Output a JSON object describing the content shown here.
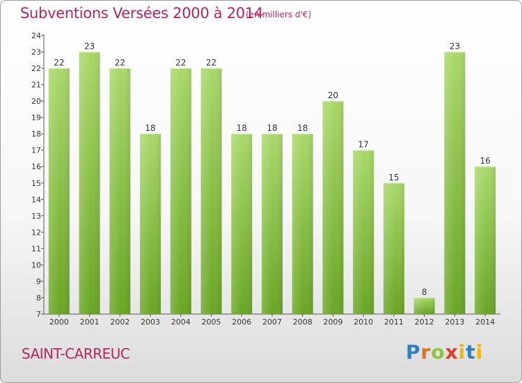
{
  "header": {
    "title": "Subventions Versées 2000 à 2014",
    "subtitle": "(en milliers d'€)"
  },
  "footer": {
    "commune": "SAINT-CARREUC",
    "logo": {
      "text": "Proxiti",
      "name": "proxiti-logo"
    }
  },
  "colors": {
    "title": "#b5245f",
    "bar_light": "#a9d86a",
    "bar_dark": "#6aa524",
    "axis": "#333333"
  },
  "chart_data": {
    "type": "bar",
    "title": "Subventions Versées 2000 à 2014",
    "subtitle": "(en milliers d'€)",
    "xlabel": "",
    "ylabel": "",
    "categories": [
      "2000",
      "2001",
      "2002",
      "2003",
      "2004",
      "2005",
      "2006",
      "2007",
      "2008",
      "2009",
      "2010",
      "2011",
      "2012",
      "2013",
      "2014"
    ],
    "values": [
      22,
      23,
      22,
      18,
      22,
      22,
      18,
      18,
      18,
      20,
      17,
      15,
      8,
      23,
      16
    ],
    "ylim": [
      7,
      24
    ],
    "yticks": [
      7,
      8,
      9,
      10,
      11,
      12,
      13,
      14,
      15,
      16,
      17,
      18,
      19,
      20,
      21,
      22,
      23,
      24
    ],
    "grid": false,
    "legend": "none"
  }
}
